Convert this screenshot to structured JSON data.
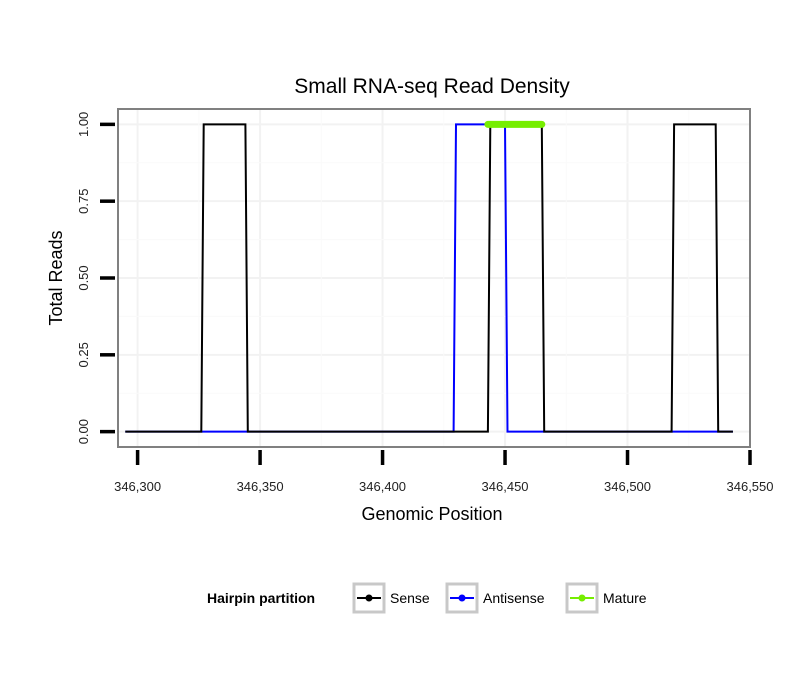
{
  "chart_data": {
    "type": "line",
    "title": "Small RNA-seq Read Density",
    "xlabel": "Genomic Position",
    "ylabel": "Total Reads",
    "xlim": [
      346292,
      346550
    ],
    "ylim": [
      -0.05,
      1.05
    ],
    "x_ticks": [
      346300,
      346350,
      346400,
      346450,
      346500,
      346550
    ],
    "x_tick_labels": [
      "346,300",
      "346,350",
      "346,400",
      "346,450",
      "346,500",
      "346,550"
    ],
    "y_ticks": [
      0,
      0.25,
      0.5,
      0.75,
      1
    ],
    "y_tick_labels": [
      "0.00",
      "0.25",
      "0.50",
      "0.75",
      "1.00"
    ],
    "grid": true,
    "legend_position": "bottom",
    "legend_title": "Hairpin partition",
    "series": [
      {
        "name": "Antisense",
        "color": "#0000ff",
        "x": [
          346295,
          346327,
          346328,
          346344,
          346345,
          346429,
          346430,
          346450,
          346451,
          346517,
          346518,
          346535,
          346536,
          346543
        ],
        "y": [
          0,
          0,
          0,
          0,
          0,
          0,
          1,
          1,
          0,
          0,
          0,
          0,
          0,
          0
        ]
      },
      {
        "name": "Sense",
        "color": "#000000",
        "x": [
          346295,
          346326,
          346327,
          346344,
          346345,
          346443,
          346444,
          346465,
          346466,
          346518,
          346519,
          346536,
          346537,
          346543
        ],
        "y": [
          0,
          0,
          1,
          1,
          0,
          0,
          1,
          1,
          0,
          0,
          1,
          1,
          0,
          0
        ]
      },
      {
        "name": "Mature",
        "color": "#76ee00",
        "x": [
          346443,
          346465
        ],
        "y": [
          1,
          1
        ]
      }
    ],
    "legend": [
      {
        "name": "Sense",
        "color": "#000000"
      },
      {
        "name": "Antisense",
        "color": "#0000ff"
      },
      {
        "name": "Mature",
        "color": "#76ee00"
      }
    ]
  }
}
